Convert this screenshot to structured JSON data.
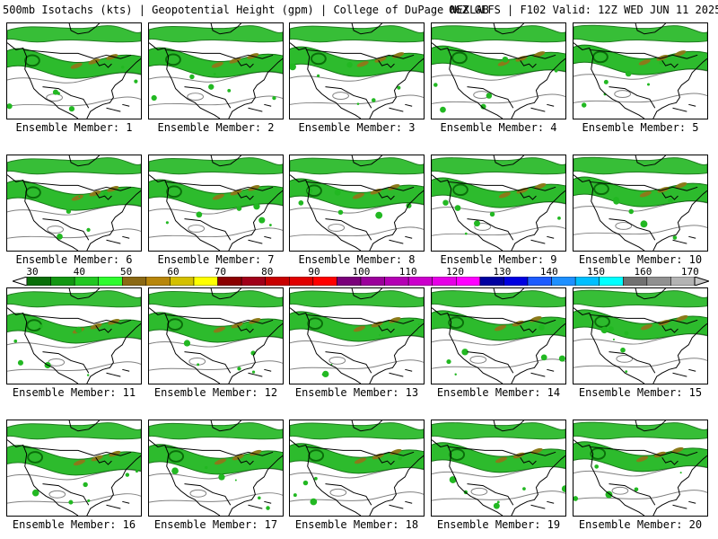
{
  "header": {
    "left": "500mb Isotachs (kts) | Geopotential Height (gpm) | College of DuPage NEXLAB",
    "right": "06Z GEFS | F102 Valid: 12Z WED JUN 11 2025"
  },
  "panels": [
    {
      "label": "Ensemble Member: 1"
    },
    {
      "label": "Ensemble Member: 2"
    },
    {
      "label": "Ensemble Member: 3"
    },
    {
      "label": "Ensemble Member: 4"
    },
    {
      "label": "Ensemble Member: 5"
    },
    {
      "label": "Ensemble Member: 6"
    },
    {
      "label": "Ensemble Member: 7"
    },
    {
      "label": "Ensemble Member: 8"
    },
    {
      "label": "Ensemble Member: 9"
    },
    {
      "label": "Ensemble Member: 10"
    },
    {
      "label": "Ensemble Member: 11"
    },
    {
      "label": "Ensemble Member: 12"
    },
    {
      "label": "Ensemble Member: 13"
    },
    {
      "label": "Ensemble Member: 14"
    },
    {
      "label": "Ensemble Member: 15"
    },
    {
      "label": "Ensemble Member: 16"
    },
    {
      "label": "Ensemble Member: 17"
    },
    {
      "label": "Ensemble Member: 18"
    },
    {
      "label": "Ensemble Member: 19"
    },
    {
      "label": "Ensemble Member: 20"
    }
  ],
  "colorbar": {
    "labels": [
      "30",
      "40",
      "50",
      "60",
      "70",
      "80",
      "90",
      "100",
      "110",
      "120",
      "130",
      "140",
      "150",
      "160",
      "170"
    ],
    "colors": [
      "#0a6e0a",
      "#129612",
      "#22c722",
      "#2efb2e",
      "#8b6914",
      "#b8860b",
      "#d4c000",
      "#ffff00",
      "#8b0000",
      "#a0001a",
      "#c80000",
      "#e00000",
      "#ff0000",
      "#7a007a",
      "#9b009b",
      "#b400b4",
      "#cc00cc",
      "#e600e6",
      "#ff00ff",
      "#0000a0",
      "#0000e0",
      "#1e5cff",
      "#1e90ff",
      "#00bfff",
      "#00ffff",
      "#707070",
      "#909090",
      "#b4b4b4"
    ]
  },
  "map_colors": {
    "jet_light": "#22b822",
    "jet_dark": "#0a6e0a",
    "jet_core": "#8b7a1a",
    "height_contour": "#808080",
    "coastline": "#000000"
  }
}
